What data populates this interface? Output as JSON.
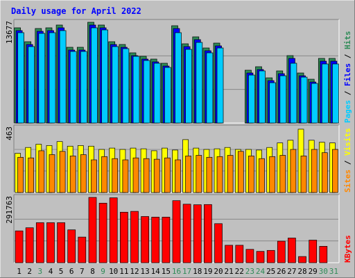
{
  "chart_data": {
    "type": "bar",
    "title": "Daily usage for April 2022",
    "categories": [
      "1",
      "2",
      "3",
      "4",
      "5",
      "6",
      "7",
      "8",
      "9",
      "10",
      "11",
      "12",
      "13",
      "14",
      "15",
      "16",
      "17",
      "18",
      "19",
      "20",
      "21",
      "22",
      "23",
      "24",
      "25",
      "26",
      "27",
      "28",
      "29",
      "30",
      "31"
    ],
    "weekend_days": [
      "3",
      "9",
      "16",
      "17",
      "23",
      "24",
      "30",
      "31"
    ],
    "panels": [
      {
        "name": "hits-files-pages",
        "ylabel_parts": [
          "Pages",
          "Files",
          "Hits"
        ],
        "ylabel_separator": " / ",
        "max_label": "13677",
        "max": 14500,
        "series": [
          {
            "name": "Hits",
            "color": "#2e8b57",
            "values": [
              13700,
              11700,
              13600,
              13700,
              14100,
              10900,
              10900,
              14500,
              14100,
              11700,
              11300,
              10100,
              9600,
              9200,
              8600,
              14000,
              11400,
              12400,
              10800,
              11500,
              null,
              null,
              7600,
              8100,
              6500,
              7500,
              9700,
              7200,
              6300,
              9300,
              9300
            ]
          },
          {
            "name": "Files",
            "color": "#0000ff",
            "values": [
              13300,
              11300,
              13200,
              13300,
              13700,
              10500,
              10500,
              14100,
              13700,
              11300,
              10900,
              9700,
              9200,
              8800,
              8200,
              13600,
              11000,
              12000,
              10400,
              11100,
              null,
              null,
              7200,
              7700,
              6100,
              7100,
              9300,
              6800,
              5900,
              8900,
              8900
            ]
          },
          {
            "name": "Pages",
            "color": "#00ccff",
            "values": [
              13000,
              11000,
              12900,
              13000,
              13300,
              10300,
              10300,
              13700,
              13400,
              11000,
              10700,
              9600,
              9000,
              8600,
              8000,
              13000,
              10600,
              11600,
              10100,
              10800,
              null,
              null,
              6900,
              7500,
              5800,
              6800,
              8600,
              6600,
              5700,
              8500,
              8500
            ]
          }
        ]
      },
      {
        "name": "sites-visits",
        "ylabel_parts": [
          "Sites",
          "Visits"
        ],
        "ylabel_separator": " / ",
        "max_label": "463",
        "max": 495,
        "series": [
          {
            "name": "Visits",
            "color": "#ffff00",
            "values": [
              300,
              345,
              370,
              360,
              390,
              355,
              360,
              355,
              330,
              340,
              330,
              340,
              335,
              320,
              340,
              325,
              405,
              340,
              330,
              335,
              345,
              330,
              330,
              325,
              345,
              380,
              400,
              485,
              400,
              385,
              380
            ]
          },
          {
            "name": "Sites",
            "color": "#ff8800",
            "values": [
              270,
              265,
              320,
              290,
              315,
              280,
              290,
              250,
              275,
              260,
              250,
              265,
              260,
              255,
              265,
              250,
              280,
              285,
              270,
              275,
              285,
              315,
              280,
              260,
              275,
              285,
              330,
              280,
              330,
              305,
              330
            ]
          }
        ]
      },
      {
        "name": "kbytes",
        "ylabel_parts": [
          "KBytes"
        ],
        "ylabel_separator": "",
        "max_label": "291763",
        "max": 318000,
        "series": [
          {
            "name": "KBytes",
            "color": "#ff0000",
            "values": [
              155000,
              170000,
              195000,
              195000,
              195000,
              160000,
              125000,
              318000,
              290000,
              316000,
              246000,
              250000,
              225000,
              222000,
              222000,
              302000,
              285000,
              282000,
              283000,
              190000,
              85000,
              85000,
              65000,
              55000,
              60000,
              105000,
              120000,
              30000,
              110000,
              80000,
              null
            ]
          }
        ]
      }
    ]
  }
}
